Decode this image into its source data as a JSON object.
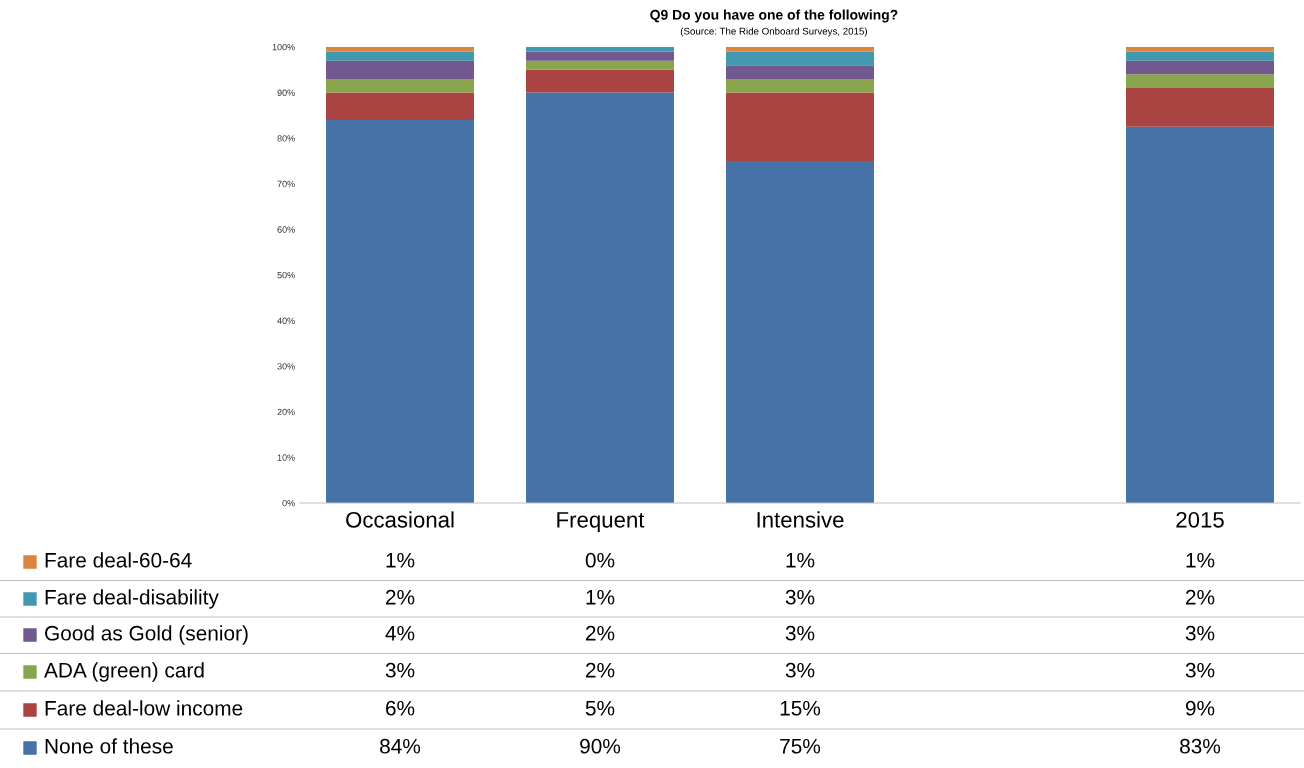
{
  "chart_data": {
    "type": "bar",
    "stacked": true,
    "title": "Q9 Do you have one of the following?",
    "subtitle": "(Source: The Ride Onboard Surveys, 2015)",
    "categories": [
      "Occasional",
      "Frequent",
      "Intensive",
      null,
      "2015"
    ],
    "series": [
      {
        "name": "None of these",
        "color": "#4672a8",
        "values": [
          84,
          90,
          75,
          null,
          82.5
        ],
        "value_labels": [
          "84%",
          "90%",
          "75%",
          null,
          "83%"
        ]
      },
      {
        "name": "Fare deal-low income",
        "color": "#aa4442",
        "values": [
          6,
          5,
          15,
          null,
          8.5
        ],
        "value_labels": [
          "6%",
          "5%",
          "15%",
          null,
          "9%"
        ]
      },
      {
        "name": "ADA (green) card",
        "color": "#89a54e",
        "values": [
          3,
          2,
          3,
          null,
          3
        ],
        "value_labels": [
          "3%",
          "2%",
          "3%",
          null,
          "3%"
        ]
      },
      {
        "name": "Good as Gold (senior)",
        "color": "#71588f",
        "values": [
          4,
          2,
          3,
          null,
          3
        ],
        "value_labels": [
          "4%",
          "2%",
          "3%",
          null,
          "3%"
        ]
      },
      {
        "name": "Fare deal-disability",
        "color": "#4198af",
        "values": [
          2,
          1,
          3,
          null,
          2
        ],
        "value_labels": [
          "2%",
          "1%",
          "3%",
          null,
          "2%"
        ]
      },
      {
        "name": "Fare deal-60-64",
        "color": "#db843d",
        "values": [
          1,
          0,
          1,
          null,
          1
        ],
        "value_labels": [
          "1%",
          "0%",
          "1%",
          null,
          "1%"
        ]
      }
    ],
    "ylim": [
      0,
      100
    ],
    "yticks": [
      {
        "value": 0,
        "label": "0%"
      },
      {
        "value": 10,
        "label": "10%"
      },
      {
        "value": 20,
        "label": "20%"
      },
      {
        "value": 30,
        "label": "30%"
      },
      {
        "value": 40,
        "label": "40%"
      },
      {
        "value": 50,
        "label": "50%"
      },
      {
        "value": 60,
        "label": "60%"
      },
      {
        "value": 70,
        "label": "70%"
      },
      {
        "value": 80,
        "label": "80%"
      },
      {
        "value": 90,
        "label": "90%"
      },
      {
        "value": 100,
        "label": "100%"
      }
    ],
    "grid": false,
    "legend": "bottom"
  }
}
